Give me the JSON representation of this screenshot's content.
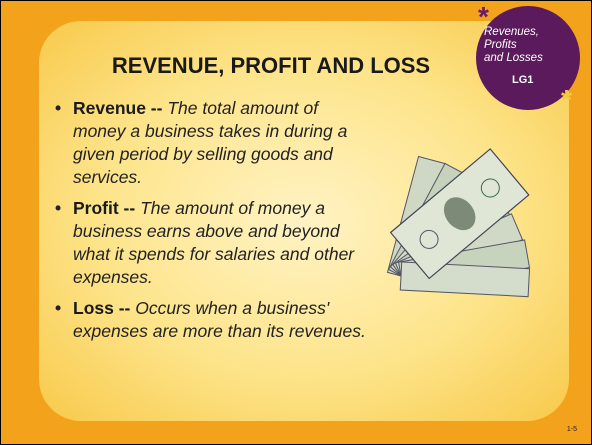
{
  "title": "REVENUE, PROFIT AND LOSS",
  "badge": {
    "lines": [
      "Revenues,",
      "Profits",
      "and Losses"
    ],
    "code": "LG1"
  },
  "bullets": [
    {
      "term": "Revenue --",
      "definition": "The total amount of money a business takes in during a given period by selling goods and services."
    },
    {
      "term": "Profit --",
      "definition": "The amount of money a business earns above and beyond what it spends for salaries and other expenses."
    },
    {
      "term": "Loss --",
      "definition": "Occurs when a business' expenses are more than its revenues."
    }
  ],
  "page_number": "1-5"
}
